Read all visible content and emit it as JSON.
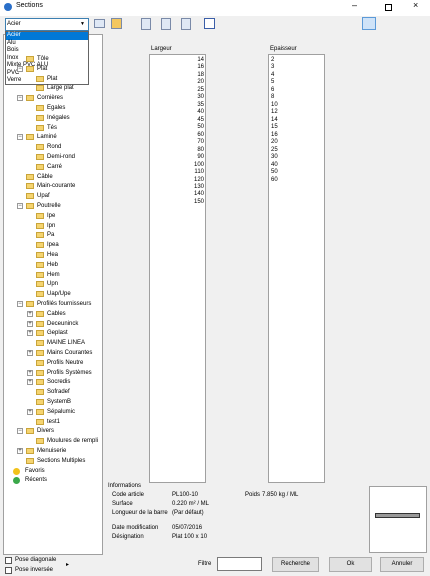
{
  "window": {
    "title": "Sections"
  },
  "material_select": {
    "selected": "Acier",
    "options": [
      "Acier",
      "Alu",
      "Bois",
      "Inox",
      "Mixte PVC ALU",
      "PVC",
      "Verre"
    ]
  },
  "tree": [
    {
      "label": "Tôle"
    },
    {
      "label": "Plat",
      "children": [
        {
          "label": "Plat"
        },
        {
          "label": "Large plat"
        }
      ]
    },
    {
      "label": "Cornières",
      "children": [
        {
          "label": "Egales"
        },
        {
          "label": "Inégales"
        },
        {
          "label": "Tés"
        }
      ]
    },
    {
      "label": "Laminé",
      "children": [
        {
          "label": "Rond"
        },
        {
          "label": "Demi-rond"
        },
        {
          "label": "Carré"
        }
      ]
    },
    {
      "label": "Câble"
    },
    {
      "label": "Main-courante"
    },
    {
      "label": "Upaf"
    },
    {
      "label": "Poutrelle",
      "children": [
        {
          "label": "Ipe"
        },
        {
          "label": "Ipn"
        },
        {
          "label": "Pa"
        },
        {
          "label": "Ipea"
        },
        {
          "label": "Hea"
        },
        {
          "label": "Heb"
        },
        {
          "label": "Hem"
        },
        {
          "label": "Upn"
        },
        {
          "label": "Uap/Upe"
        }
      ]
    },
    {
      "label": "Profilés fournisseurs",
      "children": [
        {
          "label": "Cables",
          "collapsed": true
        },
        {
          "label": "Deceuninck",
          "collapsed": true
        },
        {
          "label": "Geplast",
          "collapsed": true
        },
        {
          "label": "MAINE LINEA"
        },
        {
          "label": "Mains Courantes",
          "collapsed": true
        },
        {
          "label": "Profils Neutre"
        },
        {
          "label": "Profils Systèmes",
          "collapsed": true
        },
        {
          "label": "Socredis",
          "collapsed": true
        },
        {
          "label": "Sofradef"
        },
        {
          "label": "SystemB"
        },
        {
          "label": "Sépalumic",
          "collapsed": true
        },
        {
          "label": "test1"
        }
      ]
    },
    {
      "label": "Divers",
      "children": [
        {
          "label": "Moulures de rempli"
        }
      ]
    },
    {
      "label": "Menuiserie",
      "collapsed": true
    },
    {
      "label": "Sections Multiples"
    }
  ],
  "shortcuts": [
    "Favoris",
    "Récents"
  ],
  "largeur": {
    "header": "Largeur",
    "items": [
      14,
      16,
      18,
      20,
      25,
      30,
      35,
      40,
      45,
      50,
      60,
      70,
      80,
      90,
      100,
      110,
      120,
      130,
      140,
      150
    ]
  },
  "epaisseur": {
    "header": "Epaisseur",
    "items": [
      2,
      3,
      4,
      5,
      6,
      8,
      10,
      12,
      14,
      15,
      16,
      20,
      25,
      30,
      40,
      50,
      60
    ]
  },
  "informations": {
    "title": "Informations",
    "fields": [
      {
        "label": "Code article",
        "value": "PL100-10"
      },
      {
        "label": "Surface",
        "value": "0.220 m² / ML"
      },
      {
        "label": "Longueur de la barre",
        "value": "(Par défaut)"
      },
      {
        "label": "Date modification",
        "value": "05/07/2016"
      },
      {
        "label": "Désignation",
        "value": "Plat 100 x 10"
      }
    ],
    "poids": {
      "label": "Poids",
      "value": "7.850 kg / ML"
    }
  },
  "footer": {
    "checkboxes": [
      "Pose diagonale",
      "Pose inversée"
    ],
    "filter_label": "Filtre",
    "buttons": [
      "Recherche",
      "Ok",
      "Annuler"
    ]
  }
}
